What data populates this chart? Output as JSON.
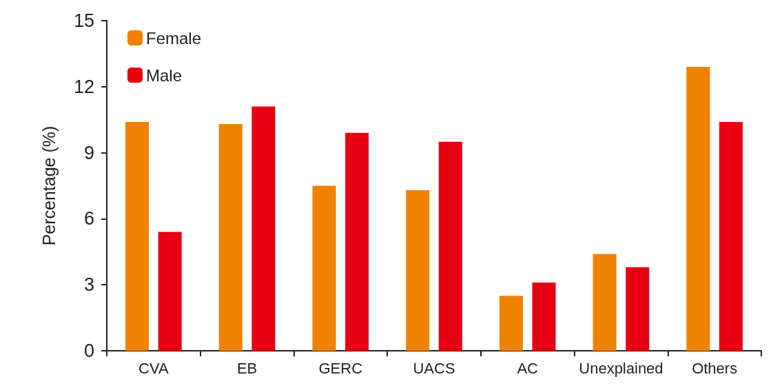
{
  "chart_data": {
    "type": "bar",
    "ylabel": "Percentage (%)",
    "categories": [
      "CVA",
      "EB",
      "GERC",
      "UACS",
      "AC",
      "Unexplained",
      "Others"
    ],
    "series": [
      {
        "name": "Female",
        "color": "#f08200",
        "values": [
          10.4,
          10.3,
          7.5,
          7.3,
          2.5,
          4.4,
          12.9
        ]
      },
      {
        "name": "Male",
        "color": "#e60012",
        "values": [
          5.4,
          11.1,
          9.9,
          9.5,
          3.1,
          3.8,
          10.4
        ]
      }
    ],
    "ylim": [
      0,
      15
    ],
    "yticks": [
      0,
      3,
      6,
      9,
      12,
      15
    ],
    "grid": false,
    "legend": "top left"
  }
}
